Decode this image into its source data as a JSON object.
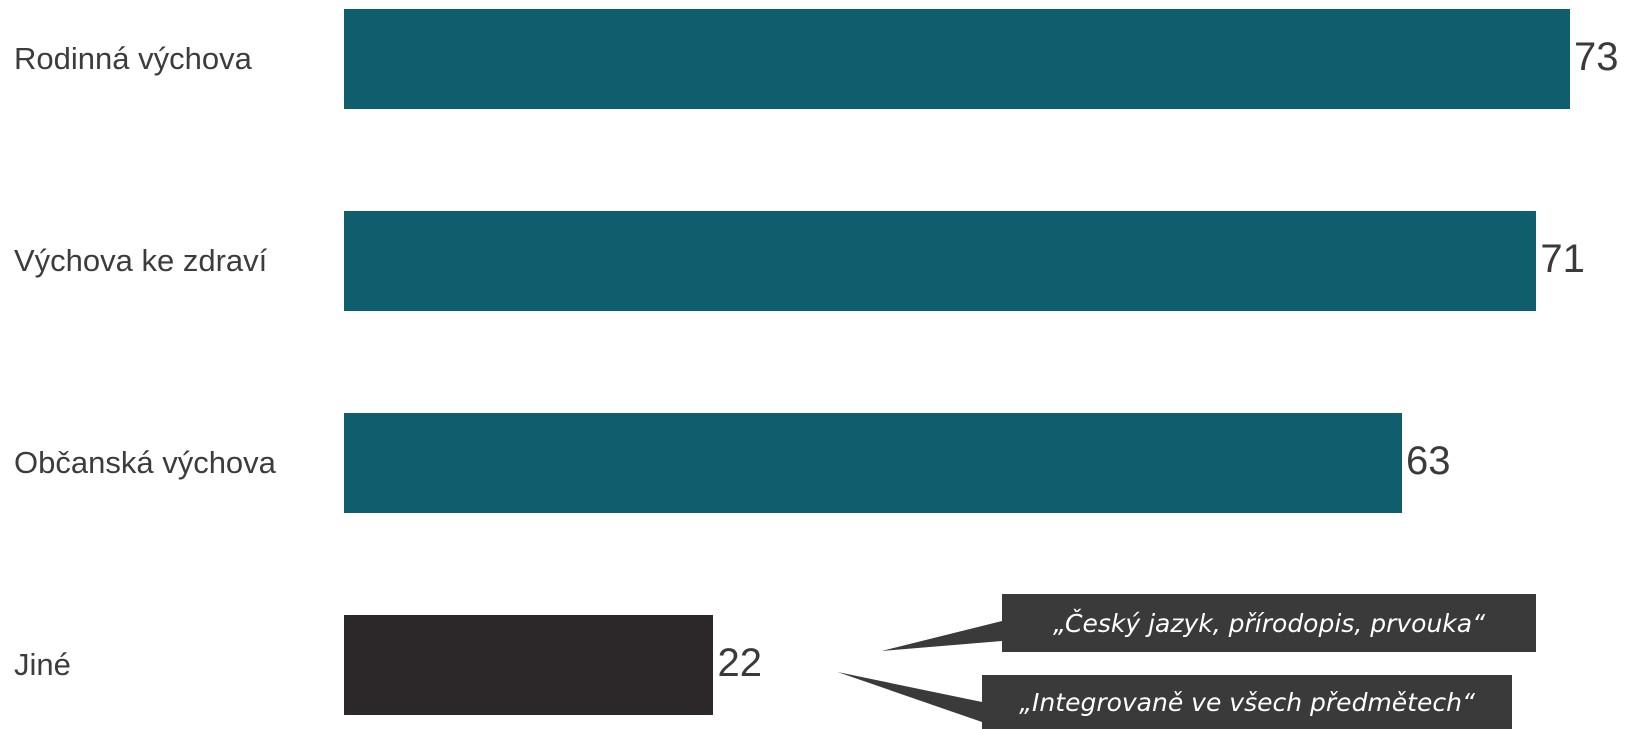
{
  "chart_data": {
    "type": "bar",
    "orientation": "horizontal",
    "categories": [
      "Rodinná výchova",
      "Výchova ke zdraví",
      "Občanská výchova",
      "Jiné"
    ],
    "values": [
      73,
      71,
      63,
      22
    ],
    "value_labels": [
      "73",
      "71",
      "63",
      "22"
    ],
    "bar_colors": [
      "#0f5e6e",
      "#0f5e6e",
      "#0f5e6e",
      "#2c2829"
    ],
    "xlim": [
      0,
      73
    ],
    "grid": false,
    "annotations": [
      {
        "text": "„Český jazyk, přírodopis, prvouka“",
        "category": "Jiné"
      },
      {
        "text": "„Integrovaně ve všech předmětech“",
        "category": "Jiné"
      }
    ]
  },
  "colors": {
    "callout_bg": "#3a3a3a",
    "callout_text": "#ffffff"
  }
}
